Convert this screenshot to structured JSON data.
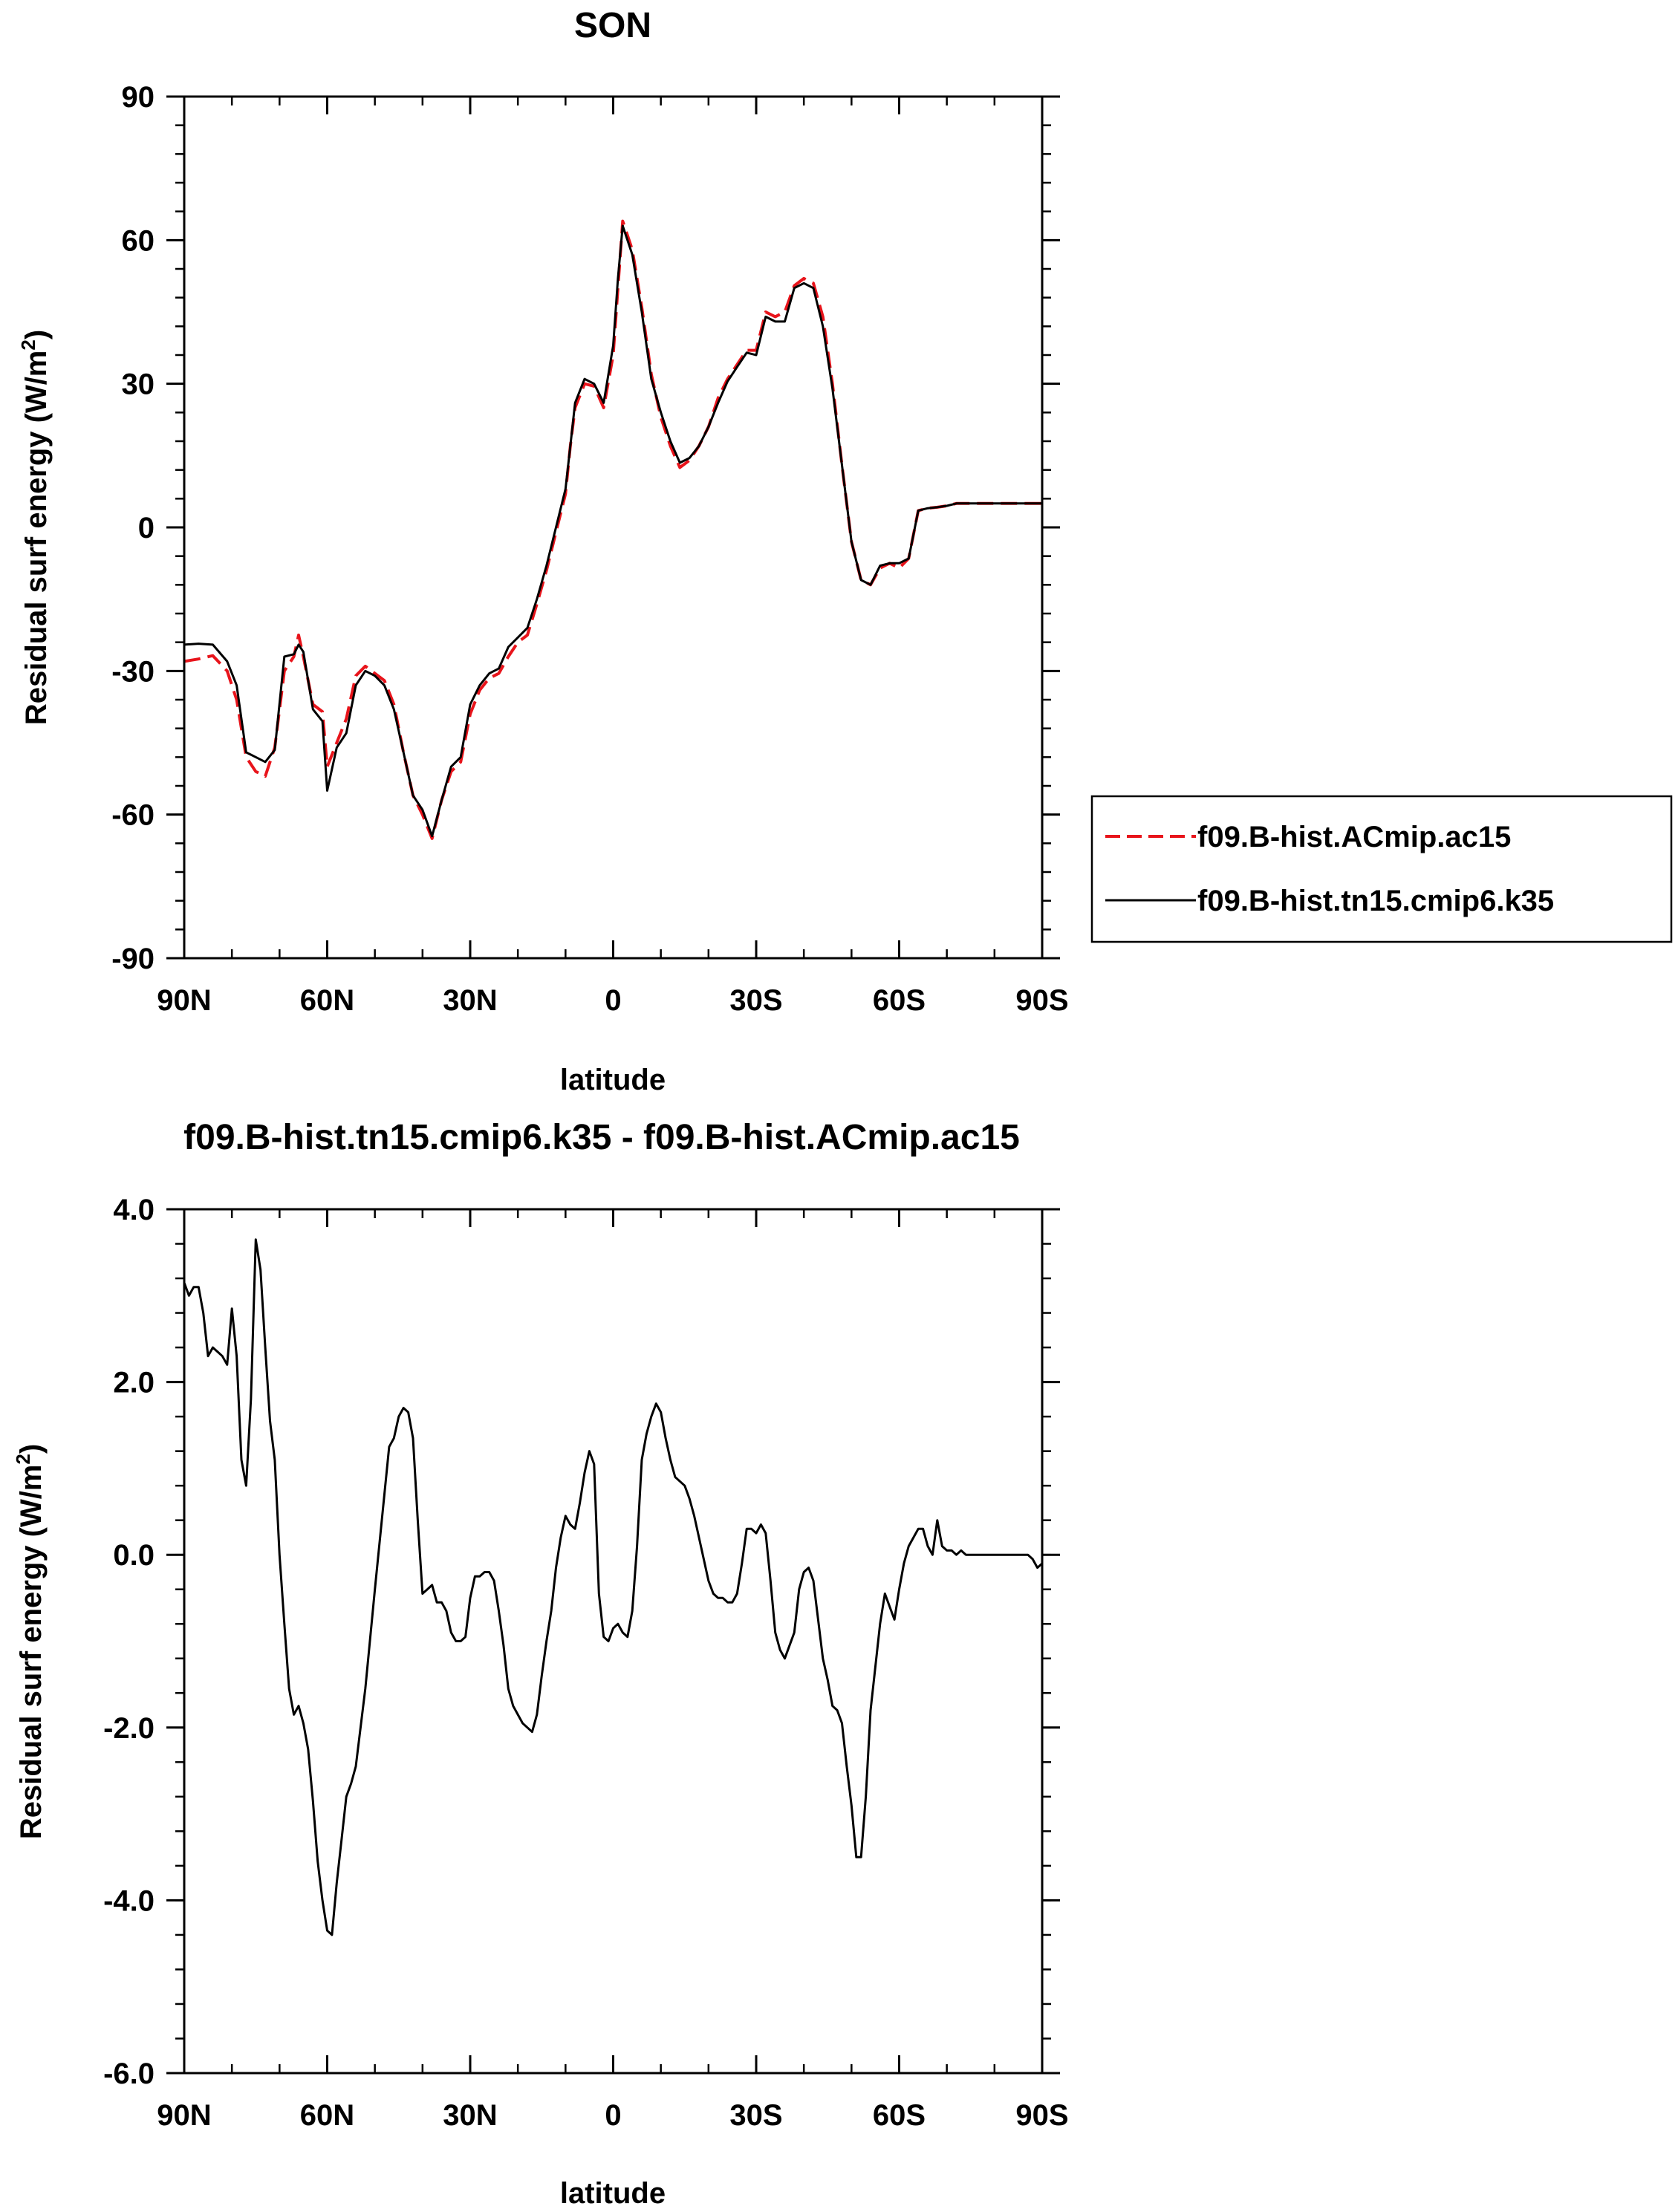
{
  "chart_data": [
    {
      "type": "line",
      "title": "SON",
      "xlabel": "latitude",
      "ylabel": "Residual surf energy (W/m",
      "ylabel_sup": "2",
      "ylabel_end": ")",
      "xlim": [
        90,
        -90
      ],
      "ylim": [
        -90,
        90
      ],
      "x_ticks": [
        90,
        60,
        30,
        0,
        -30,
        -60,
        -90
      ],
      "x_tick_labels": [
        "90N",
        "60N",
        "30N",
        "0",
        "30S",
        "60S",
        "90S"
      ],
      "y_ticks": [
        90,
        60,
        30,
        0,
        -30,
        -60,
        -90
      ],
      "y_tick_labels": [
        "90",
        "60",
        "30",
        "0",
        "-30",
        "-60",
        "-90"
      ],
      "legend_position": "right-middle",
      "series": [
        {
          "name": "f09.B-hist.ACmip.ac15",
          "color": "#e8141b",
          "dash": "dashed",
          "x": [
            90,
            87,
            84,
            81,
            79,
            77,
            75,
            73,
            71,
            69,
            67,
            66,
            65,
            63,
            61,
            60,
            58,
            56,
            54,
            52,
            50,
            48,
            46,
            44,
            42,
            40,
            38,
            36,
            34,
            32,
            30,
            28,
            26,
            24,
            22,
            20,
            18,
            16,
            14,
            12,
            10,
            9,
            8,
            6,
            4,
            2,
            0,
            -1,
            -2,
            -4,
            -6,
            -8,
            -10,
            -12,
            -14,
            -16,
            -18,
            -20,
            -22,
            -24,
            -26,
            -28,
            -30,
            -32,
            -34,
            -36,
            -38,
            -40,
            -42,
            -44,
            -46,
            -48,
            -50,
            -52,
            -54,
            -56,
            -58,
            -60,
            -62,
            -64,
            -66,
            -68,
            -70,
            -72,
            -74,
            -76,
            -78,
            -79,
            -80,
            -82,
            -84,
            -86,
            -88,
            -90
          ],
          "y": [
            -28,
            -27.5,
            -26.8,
            -30,
            -36,
            -48,
            -51,
            -52,
            -46,
            -30,
            -27,
            -22.5,
            -27,
            -37,
            -38.5,
            -50,
            -45,
            -40,
            -31,
            -29,
            -30.5,
            -32,
            -37,
            -47,
            -56,
            -60,
            -65,
            -57,
            -51,
            -49,
            -39,
            -34,
            -31.5,
            -30.5,
            -27,
            -24,
            -22.5,
            -16,
            -9,
            -1,
            7,
            17,
            25,
            30,
            29.5,
            25,
            36,
            50,
            64,
            58,
            46,
            32,
            23,
            17,
            12.5,
            14,
            17,
            21,
            27,
            31,
            34,
            37,
            37,
            45,
            44,
            45,
            50.5,
            52,
            51,
            44,
            30,
            13,
            -3,
            -11,
            -12,
            -8.5,
            -7.5,
            -8.5,
            -6.5,
            3.5,
            4,
            4.2,
            4.5,
            5,
            5,
            5,
            5,
            5,
            5,
            5,
            5,
            5,
            5,
            5
          ]
        },
        {
          "name": "f09.B-hist.tn15.cmip6.k35",
          "color": "#000000",
          "dash": "solid",
          "x": [
            90,
            87,
            84,
            81,
            79,
            77,
            75,
            73,
            71,
            69,
            67,
            66,
            65,
            63,
            61,
            60,
            58,
            56,
            54,
            52,
            50,
            48,
            46,
            44,
            42,
            40,
            38,
            36,
            34,
            32,
            30,
            28,
            26,
            24,
            22,
            20,
            18,
            16,
            14,
            12,
            10,
            9,
            8,
            6,
            4,
            2,
            0,
            -1,
            -2,
            -4,
            -6,
            -8,
            -10,
            -12,
            -14,
            -16,
            -18,
            -20,
            -22,
            -24,
            -26,
            -28,
            -30,
            -32,
            -34,
            -36,
            -38,
            -40,
            -42,
            -44,
            -46,
            -48,
            -50,
            -52,
            -54,
            -56,
            -58,
            -60,
            -62,
            -64,
            -66,
            -68,
            -70,
            -72,
            -74,
            -76,
            -78,
            -79,
            -80,
            -82,
            -84,
            -86,
            -88,
            -90
          ],
          "y": [
            -24.5,
            -24.3,
            -24.5,
            -28,
            -33,
            -47,
            -48,
            -49,
            -46.5,
            -27,
            -26.5,
            -24.5,
            -26,
            -38,
            -40.5,
            -55,
            -46,
            -43,
            -33,
            -30,
            -31,
            -33,
            -38,
            -47,
            -56,
            -59,
            -64.5,
            -57,
            -50,
            -48,
            -37,
            -33,
            -30.5,
            -29.5,
            -25,
            -23,
            -21,
            -15,
            -8,
            0,
            8,
            17,
            26,
            31,
            30,
            26,
            38,
            52,
            63,
            57,
            45,
            31,
            24,
            18,
            13.5,
            14.5,
            17,
            21,
            26,
            30.5,
            33.5,
            36.5,
            36,
            44,
            43,
            43,
            50,
            51,
            50,
            42,
            29,
            13,
            -3,
            -11,
            -12,
            -8,
            -7.5,
            -7.5,
            -6.5,
            3.5,
            4,
            4.2,
            4.5,
            5,
            5,
            5,
            5,
            5,
            5,
            5,
            5,
            5,
            5,
            5
          ]
        }
      ]
    },
    {
      "type": "line",
      "title": "f09.B-hist.tn15.cmip6.k35 - f09.B-hist.ACmip.ac15",
      "xlabel": "latitude",
      "ylabel": "Residual surf energy (W/m",
      "ylabel_sup": "2",
      "ylabel_end": ")",
      "xlim": [
        90,
        -90
      ],
      "ylim": [
        -6,
        4
      ],
      "x_ticks": [
        90,
        60,
        30,
        0,
        -30,
        -60,
        -90
      ],
      "x_tick_labels": [
        "90N",
        "60N",
        "30N",
        "0",
        "30S",
        "60S",
        "90S"
      ],
      "y_ticks": [
        4,
        2,
        0,
        -2,
        -4,
        -6
      ],
      "y_tick_labels": [
        "4.0",
        "2.0",
        "0.0",
        "-2.0",
        "-4.0",
        "-6.0"
      ],
      "series": [
        {
          "color": "#000000",
          "dash": "solid",
          "x": [
            90,
            89,
            88,
            87,
            86,
            85,
            84,
            83,
            82,
            81,
            80,
            79,
            78,
            77,
            76,
            75,
            74,
            73,
            72,
            71,
            70,
            69,
            68,
            67,
            66,
            65,
            64,
            63,
            62,
            61,
            60,
            59,
            58,
            57,
            56,
            55,
            54,
            52,
            50,
            48,
            47,
            46,
            45,
            44,
            43,
            42,
            41,
            40,
            39,
            38,
            37,
            36,
            35,
            34,
            33,
            32,
            31,
            30,
            29,
            28,
            27,
            26,
            25,
            24,
            23,
            22,
            21,
            20,
            19,
            18,
            17,
            16,
            15,
            14,
            13,
            12,
            11,
            10,
            9,
            8,
            7,
            6,
            5,
            4,
            3,
            2,
            1,
            0,
            -1,
            -2,
            -3,
            -4,
            -5,
            -6,
            -7,
            -8,
            -9,
            -10,
            -11,
            -12,
            -13,
            -14,
            -15,
            -16,
            -17,
            -18,
            -19,
            -20,
            -21,
            -22,
            -23,
            -24,
            -25,
            -26,
            -27,
            -28,
            -29,
            -30,
            -31,
            -32,
            -33,
            -34,
            -35,
            -36,
            -37,
            -38,
            -39,
            -40,
            -41,
            -42,
            -43,
            -44,
            -45,
            -46,
            -47,
            -48,
            -49,
            -50,
            -51,
            -52,
            -53,
            -54,
            -55,
            -56,
            -57,
            -58,
            -59,
            -60,
            -61,
            -62,
            -63,
            -64,
            -65,
            -66,
            -67,
            -68,
            -69,
            -70,
            -71,
            -72,
            -73,
            -74,
            -75,
            -76,
            -77,
            -78,
            -79,
            -80,
            -81,
            -82,
            -83,
            -84,
            -85,
            -86,
            -87,
            -88,
            -89,
            -90
          ],
          "y": [
            3.15,
            3.0,
            3.1,
            3.1,
            2.8,
            2.3,
            2.4,
            2.35,
            2.3,
            2.2,
            2.85,
            2.3,
            1.1,
            0.8,
            1.8,
            3.65,
            3.3,
            2.4,
            1.55,
            1.1,
            0.0,
            -0.8,
            -1.55,
            -1.85,
            -1.75,
            -1.95,
            -2.25,
            -2.85,
            -3.55,
            -4.0,
            -4.35,
            -4.4,
            -3.8,
            -3.3,
            -2.8,
            -2.65,
            -2.45,
            -1.55,
            -0.4,
            0.7,
            1.25,
            1.35,
            1.6,
            1.7,
            1.65,
            1.35,
            0.4,
            -0.45,
            -0.4,
            -0.35,
            -0.55,
            -0.55,
            -0.65,
            -0.9,
            -1.0,
            -1.0,
            -0.95,
            -0.5,
            -0.25,
            -0.25,
            -0.2,
            -0.2,
            -0.3,
            -0.65,
            -1.05,
            -1.55,
            -1.75,
            -1.85,
            -1.95,
            -2.0,
            -2.05,
            -1.85,
            -1.4,
            -1.0,
            -0.65,
            -0.15,
            0.2,
            0.45,
            0.35,
            0.3,
            0.6,
            0.95,
            1.2,
            1.05,
            -0.45,
            -0.95,
            -1.0,
            -0.85,
            -0.8,
            -0.9,
            -0.95,
            -0.65,
            0.1,
            1.1,
            1.4,
            1.6,
            1.75,
            1.65,
            1.35,
            1.1,
            0.9,
            0.85,
            0.8,
            0.65,
            0.45,
            0.2,
            -0.05,
            -0.3,
            -0.45,
            -0.5,
            -0.5,
            -0.55,
            -0.55,
            -0.45,
            -0.1,
            0.3,
            0.3,
            0.25,
            0.35,
            0.25,
            -0.3,
            -0.9,
            -1.1,
            -1.2,
            -1.05,
            -0.9,
            -0.4,
            -0.2,
            -0.15,
            -0.3,
            -0.75,
            -1.2,
            -1.45,
            -1.75,
            -1.8,
            -1.95,
            -2.45,
            -2.9,
            -3.5,
            -3.5,
            -2.8,
            -1.8,
            -1.3,
            -0.8,
            -0.45,
            -0.6,
            -0.75,
            -0.4,
            -0.1,
            0.1,
            0.2,
            0.3,
            0.3,
            0.1,
            0.0,
            0.4,
            0.1,
            0.05,
            0.05,
            0.0,
            0.05,
            0.0,
            0.0,
            0.0,
            0.0,
            0.0,
            0.0,
            0.0,
            0.0,
            0.0,
            0.0,
            0.0,
            0.0,
            0.0,
            0.0,
            -0.05,
            -0.15,
            -0.1
          ]
        }
      ]
    }
  ]
}
